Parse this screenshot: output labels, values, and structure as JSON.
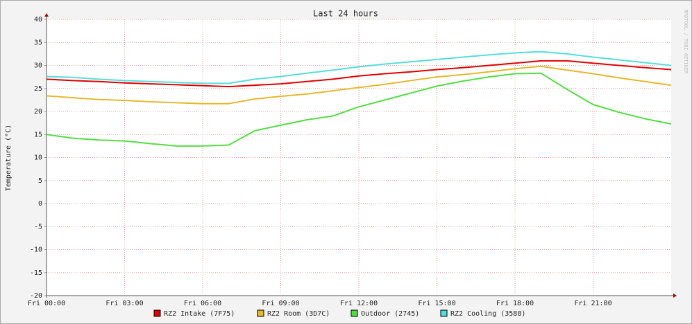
{
  "chart_data": {
    "type": "line",
    "title": "Last 24 hours",
    "y_label": "Temperature (°C)",
    "watermark": "RRDTOOL / TOBI OETIKER",
    "x": [
      0,
      1,
      2,
      3,
      4,
      5,
      6,
      7,
      8,
      9,
      10,
      11,
      12,
      13,
      14,
      15,
      16,
      17,
      18,
      19,
      20,
      21,
      22,
      23,
      24
    ],
    "xlim": [
      0,
      24
    ],
    "xticks": [
      {
        "value": 0,
        "label": "Fri 00:00"
      },
      {
        "value": 3,
        "label": "Fri 03:00"
      },
      {
        "value": 6,
        "label": "Fri 06:00"
      },
      {
        "value": 9,
        "label": "Fri 09:00"
      },
      {
        "value": 12,
        "label": "Fri 12:00"
      },
      {
        "value": 15,
        "label": "Fri 15:00"
      },
      {
        "value": 18,
        "label": "Fri 18:00"
      },
      {
        "value": 21,
        "label": "Fri 21:00"
      }
    ],
    "ylim": [
      -20,
      40
    ],
    "yticks": [
      -20,
      -15,
      -10,
      -5,
      0,
      5,
      10,
      15,
      20,
      25,
      30,
      35,
      40
    ],
    "grid": true,
    "series": [
      {
        "name": "RZ2 Intake (7F75)",
        "color": "#e00000",
        "values": [
          27.0,
          26.7,
          26.5,
          26.2,
          26.0,
          25.8,
          25.6,
          25.4,
          25.7,
          26.0,
          26.5,
          27.0,
          27.7,
          28.2,
          28.6,
          29.1,
          29.5,
          30.0,
          30.5,
          31.0,
          31.0,
          30.5,
          30.0,
          29.5,
          29.1
        ]
      },
      {
        "name": "RZ2 Room (3D7C)",
        "color": "#e6b82e",
        "values": [
          23.4,
          23.0,
          22.6,
          22.4,
          22.1,
          21.9,
          21.7,
          21.7,
          22.7,
          23.3,
          23.8,
          24.5,
          25.2,
          25.9,
          26.7,
          27.5,
          28.0,
          28.6,
          29.3,
          29.8,
          29.0,
          28.2,
          27.3,
          26.5,
          25.7
        ]
      },
      {
        "name": "Outdoor (2745)",
        "color": "#55dd44",
        "values": [
          15.0,
          14.2,
          13.8,
          13.6,
          13.0,
          12.5,
          12.5,
          12.7,
          15.8,
          17.0,
          18.2,
          19.0,
          21.0,
          22.5,
          24.0,
          25.5,
          26.6,
          27.5,
          28.2,
          28.3,
          24.8,
          21.5,
          19.8,
          18.4,
          17.3
        ]
      },
      {
        "name": "RZ2 Cooling (3588)",
        "color": "#55dddd",
        "values": [
          27.6,
          27.4,
          27.0,
          26.7,
          26.5,
          26.3,
          26.1,
          26.1,
          27.0,
          27.6,
          28.3,
          29.0,
          29.7,
          30.3,
          30.8,
          31.3,
          31.8,
          32.3,
          32.7,
          33.0,
          32.5,
          31.8,
          31.2,
          30.6,
          30.0
        ]
      }
    ]
  }
}
